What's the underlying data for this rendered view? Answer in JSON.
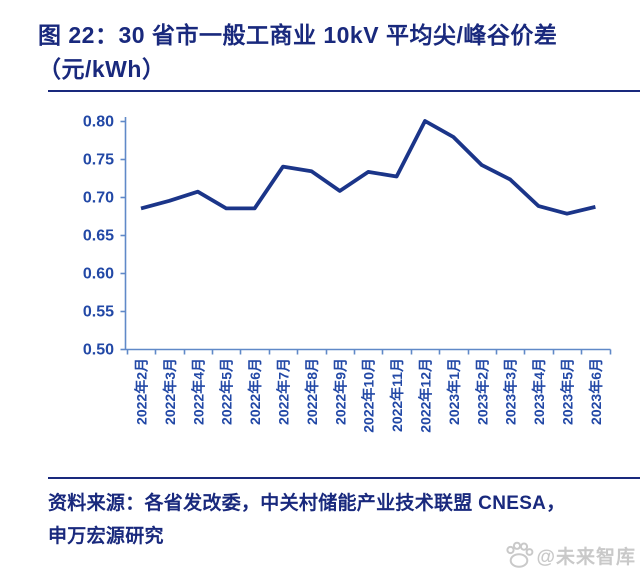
{
  "header": {
    "title_line1": "图 22：30 省市一般工商业 10kV 平均尖/峰谷价差",
    "title_line2": "（元/kWh）"
  },
  "chart_data": {
    "type": "line",
    "title": "30 省市一般工商业 10kV 平均尖/峰谷价差（元/kWh）",
    "categories": [
      "2022年2月",
      "2022年3月",
      "2022年4月",
      "2022年5月",
      "2022年6月",
      "2022年7月",
      "2022年8月",
      "2022年9月",
      "2022年10月",
      "2022年11月",
      "2022年12月",
      "2023年1月",
      "2023年2月",
      "2023年3月",
      "2023年4月",
      "2023年5月",
      "2023年6月"
    ],
    "series": [
      {
        "name": "平均尖/峰谷价差",
        "values": [
          0.685,
          0.695,
          0.707,
          0.685,
          0.685,
          0.74,
          0.734,
          0.708,
          0.733,
          0.727,
          0.8,
          0.779,
          0.742,
          0.723,
          0.688,
          0.678,
          0.687
        ]
      }
    ],
    "ylim": [
      0.5,
      0.8
    ],
    "ytick_step": 0.05,
    "ytick_labels": [
      "0.80",
      "0.75",
      "0.70",
      "0.65",
      "0.60",
      "0.55",
      "0.50"
    ],
    "xlabel": "",
    "ylabel": "",
    "grid": false,
    "legend_position": "none"
  },
  "colors": {
    "navy_text": "#19297d",
    "line": "#1b3589",
    "axis": "#6089c8",
    "tick_label": "#2248a6",
    "watermark": "#c9c9c9"
  },
  "footer": {
    "source_lines": [
      "资料来源：各省发改委，中关村储能产业技术联盟 CNESA，",
      "申万宏源研究"
    ],
    "watermark_text": "@未来智库"
  }
}
